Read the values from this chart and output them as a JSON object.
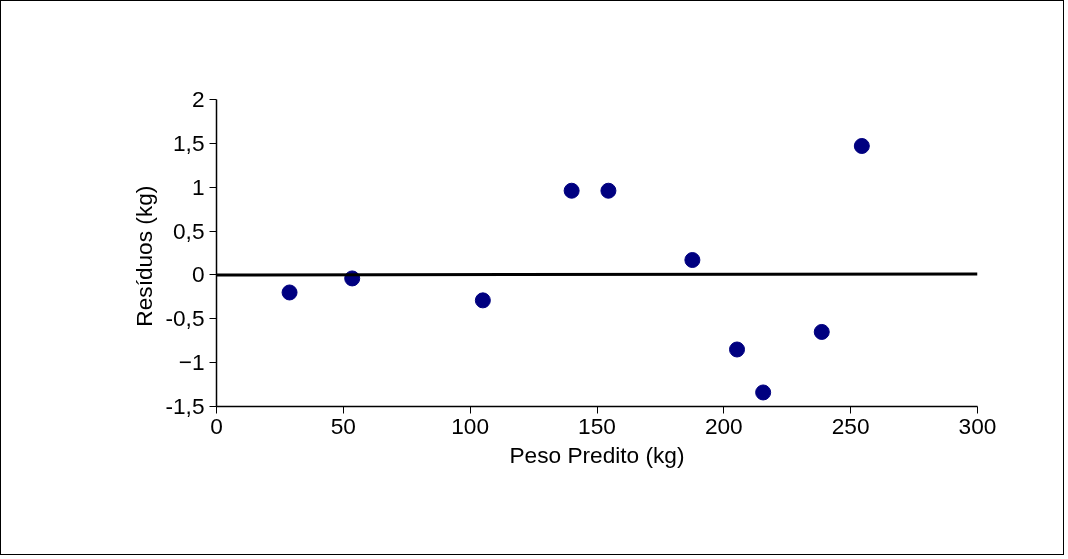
{
  "chart_data": {
    "type": "scatter",
    "xlabel": "Peso Predito (kg)",
    "ylabel": "Resíduos  (kg)",
    "xlim": [
      0,
      300
    ],
    "xticks": [
      0,
      50,
      100,
      150,
      200,
      250,
      300
    ],
    "ylim": [
      -1.5,
      2
    ],
    "yticks": [
      {
        "value": -1.5,
        "label": "-1,5"
      },
      -1,
      {
        "value": -0.5,
        "label": "-0,5"
      },
      0,
      {
        "value": 0.5,
        "label": "0,5"
      },
      1,
      {
        "value": 1.5,
        "label": "1,5"
      },
      2
    ],
    "grid": false,
    "series": [
      {
        "marker": "circle",
        "color": "#000080",
        "x": [
          28.8,
          53.5,
          105,
          140,
          154.5,
          187.6,
          205.2,
          215.5,
          238.6,
          254.4
        ],
        "values": [
          -0.2,
          -0.04,
          -0.29,
          0.96,
          0.96,
          0.17,
          -0.85,
          -1.34,
          -0.65,
          1.47
        ]
      },
      {
        "type": "line",
        "color": "#000000",
        "line_style": "solid",
        "x": [
          0,
          300
        ],
        "values": [
          0,
          0.01
        ]
      }
    ]
  }
}
